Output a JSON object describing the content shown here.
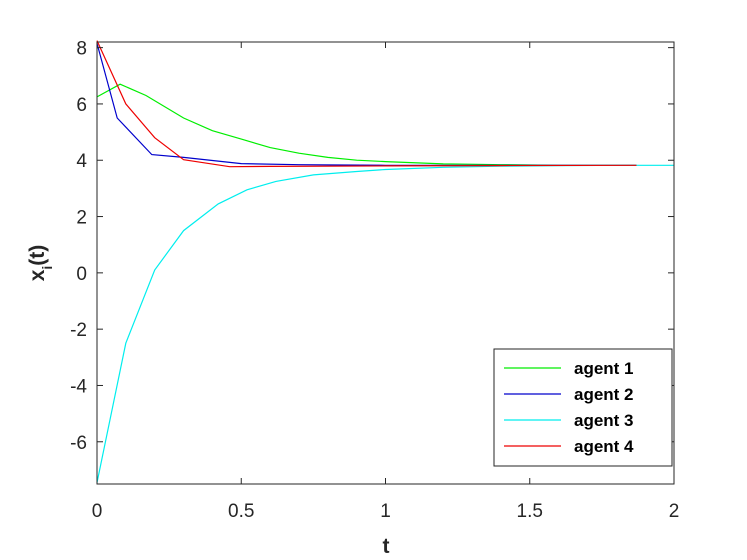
{
  "chart_data": {
    "type": "line",
    "title": "",
    "xlabel": "t",
    "ylabel_main": "x",
    "ylabel_sub": "i",
    "ylabel_tail": "(t)",
    "xlim": [
      0,
      2
    ],
    "ylim": [
      -7.5,
      8.2
    ],
    "xticks": [
      0,
      0.5,
      1,
      1.5,
      2
    ],
    "xtick_labels": [
      "0",
      "0.5",
      "1",
      "1.5",
      "2"
    ],
    "yticks": [
      -6,
      -4,
      -2,
      0,
      2,
      4,
      6,
      8
    ],
    "ytick_labels": [
      "-6",
      "-4",
      "-2",
      "0",
      "2",
      "4",
      "6",
      "8"
    ],
    "grid": false,
    "legend_position": "bottom-right",
    "series": [
      {
        "name": "agent 1",
        "color": "#00ee00",
        "x": [
          0,
          0.08,
          0.17,
          0.3,
          0.4,
          0.5,
          0.6,
          0.7,
          0.8,
          0.9,
          1.0,
          1.2,
          1.4,
          1.6,
          1.87
        ],
        "y": [
          6.25,
          6.7,
          6.3,
          5.5,
          5.05,
          4.75,
          4.45,
          4.25,
          4.1,
          4.0,
          3.95,
          3.87,
          3.84,
          3.82,
          3.82
        ]
      },
      {
        "name": "agent 2",
        "color": "#0000cc",
        "x": [
          0,
          0.07,
          0.19,
          0.3,
          0.5,
          0.7,
          1.0,
          1.4,
          1.87
        ],
        "y": [
          8.15,
          5.5,
          4.2,
          4.1,
          3.88,
          3.84,
          3.82,
          3.82,
          3.82
        ]
      },
      {
        "name": "agent 3",
        "color": "#00eeee",
        "x": [
          0,
          0.1,
          0.2,
          0.3,
          0.42,
          0.52,
          0.62,
          0.75,
          0.9,
          1.0,
          1.2,
          1.4,
          1.6,
          1.8,
          2.0
        ],
        "y": [
          -7.45,
          -2.5,
          0.1,
          1.5,
          2.45,
          2.95,
          3.25,
          3.48,
          3.6,
          3.67,
          3.75,
          3.79,
          3.81,
          3.82,
          3.82
        ]
      },
      {
        "name": "agent 4",
        "color": "#ee0000",
        "x": [
          0,
          0.1,
          0.2,
          0.3,
          0.46,
          0.6,
          1.0,
          1.4,
          1.87
        ],
        "y": [
          8.25,
          6.0,
          4.8,
          4.02,
          3.77,
          3.78,
          3.8,
          3.81,
          3.82
        ]
      }
    ]
  }
}
